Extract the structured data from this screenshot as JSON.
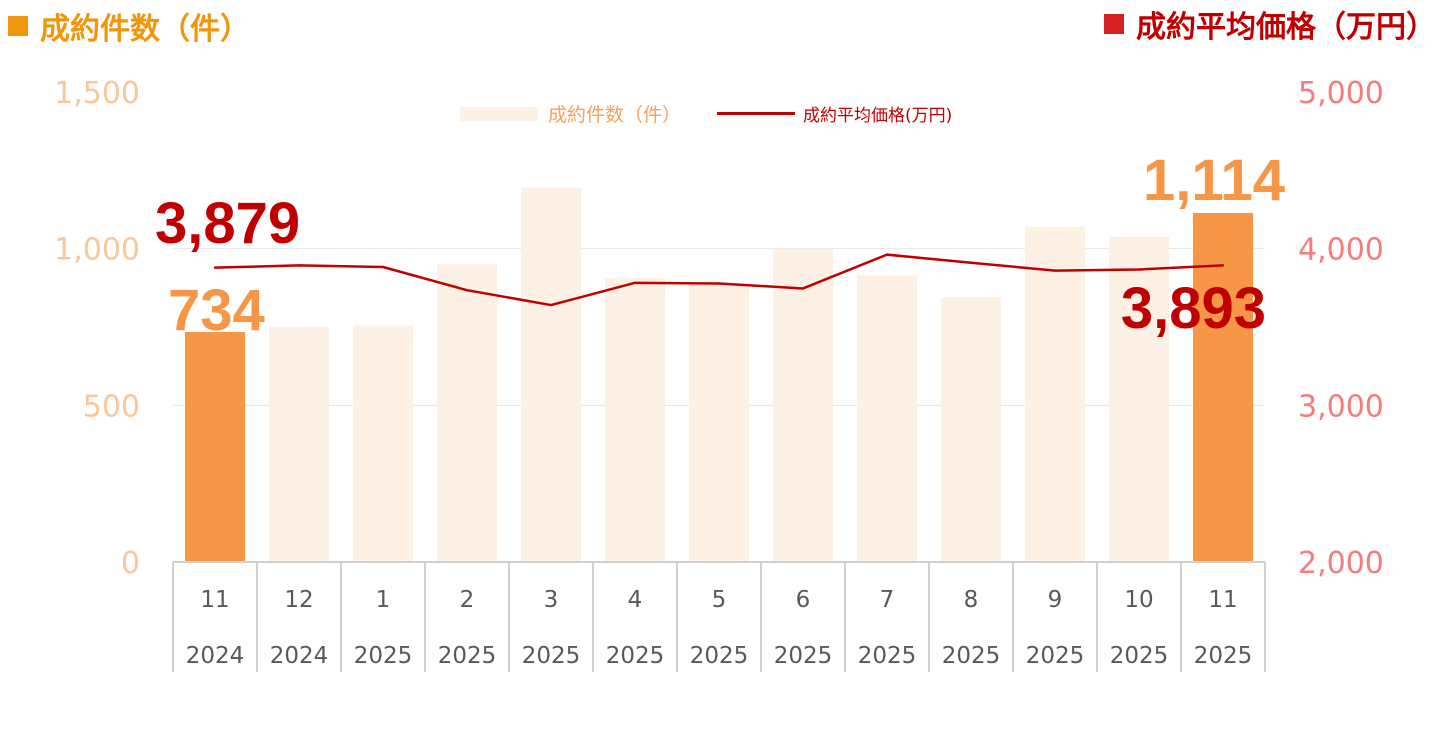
{
  "titles": {
    "left": "成約件数（件）",
    "right": "成約平均価格（万円）"
  },
  "legend": {
    "bars": "成約件数（件）",
    "line": "成約平均価格(万円)"
  },
  "colors": {
    "left_title": "#f0960a",
    "right_title": "#c00000",
    "bar_highlight": "#f79646",
    "bar_faded": "#fdf1e6",
    "line": "#c00000",
    "left_axis": "#f9c79c",
    "right_axis": "#f47c7c",
    "label_count": "#f79646",
    "label_price": "#c00000"
  },
  "chart_data": {
    "type": "bar+line",
    "categories": [
      {
        "month": "11",
        "year": "2024"
      },
      {
        "month": "12",
        "year": "2024"
      },
      {
        "month": "1",
        "year": "2025"
      },
      {
        "month": "2",
        "year": "2025"
      },
      {
        "month": "3",
        "year": "2025"
      },
      {
        "month": "4",
        "year": "2025"
      },
      {
        "month": "5",
        "year": "2025"
      },
      {
        "month": "6",
        "year": "2025"
      },
      {
        "month": "7",
        "year": "2025"
      },
      {
        "month": "8",
        "year": "2025"
      },
      {
        "month": "9",
        "year": "2025"
      },
      {
        "month": "10",
        "year": "2025"
      },
      {
        "month": "11",
        "year": "2025"
      }
    ],
    "series": [
      {
        "name": "成約件数（件）",
        "type": "bar",
        "axis": "left",
        "values": [
          734,
          750,
          755,
          950,
          1195,
          905,
          885,
          1000,
          915,
          845,
          1070,
          1038,
          1114
        ],
        "highlight": [
          true,
          false,
          false,
          false,
          false,
          false,
          false,
          false,
          false,
          false,
          false,
          false,
          true
        ]
      },
      {
        "name": "成約平均価格(万円)",
        "type": "line",
        "axis": "right",
        "values": [
          3879,
          3893,
          3883,
          3735,
          3640,
          3782,
          3778,
          3746,
          3962,
          3910,
          3860,
          3867,
          3893
        ]
      }
    ],
    "left_axis": {
      "ylim": [
        0,
        1500
      ],
      "ticks": [
        0,
        500,
        1000,
        1500
      ],
      "tick_labels": [
        "0",
        "500",
        "1,000",
        "1,500"
      ]
    },
    "right_axis": {
      "ylim": [
        2000,
        5000
      ],
      "ticks": [
        2000,
        3000,
        4000,
        5000
      ],
      "tick_labels": [
        "2,000",
        "3,000",
        "4,000",
        "5,000"
      ]
    },
    "gridlines": [
      1000,
      500
    ],
    "annotations": [
      {
        "text": "3,879",
        "series": 1,
        "index": 0
      },
      {
        "text": "734",
        "series": 0,
        "index": 0
      },
      {
        "text": "1,114",
        "series": 0,
        "index": 12
      },
      {
        "text": "3,893",
        "series": 1,
        "index": 12
      }
    ]
  }
}
